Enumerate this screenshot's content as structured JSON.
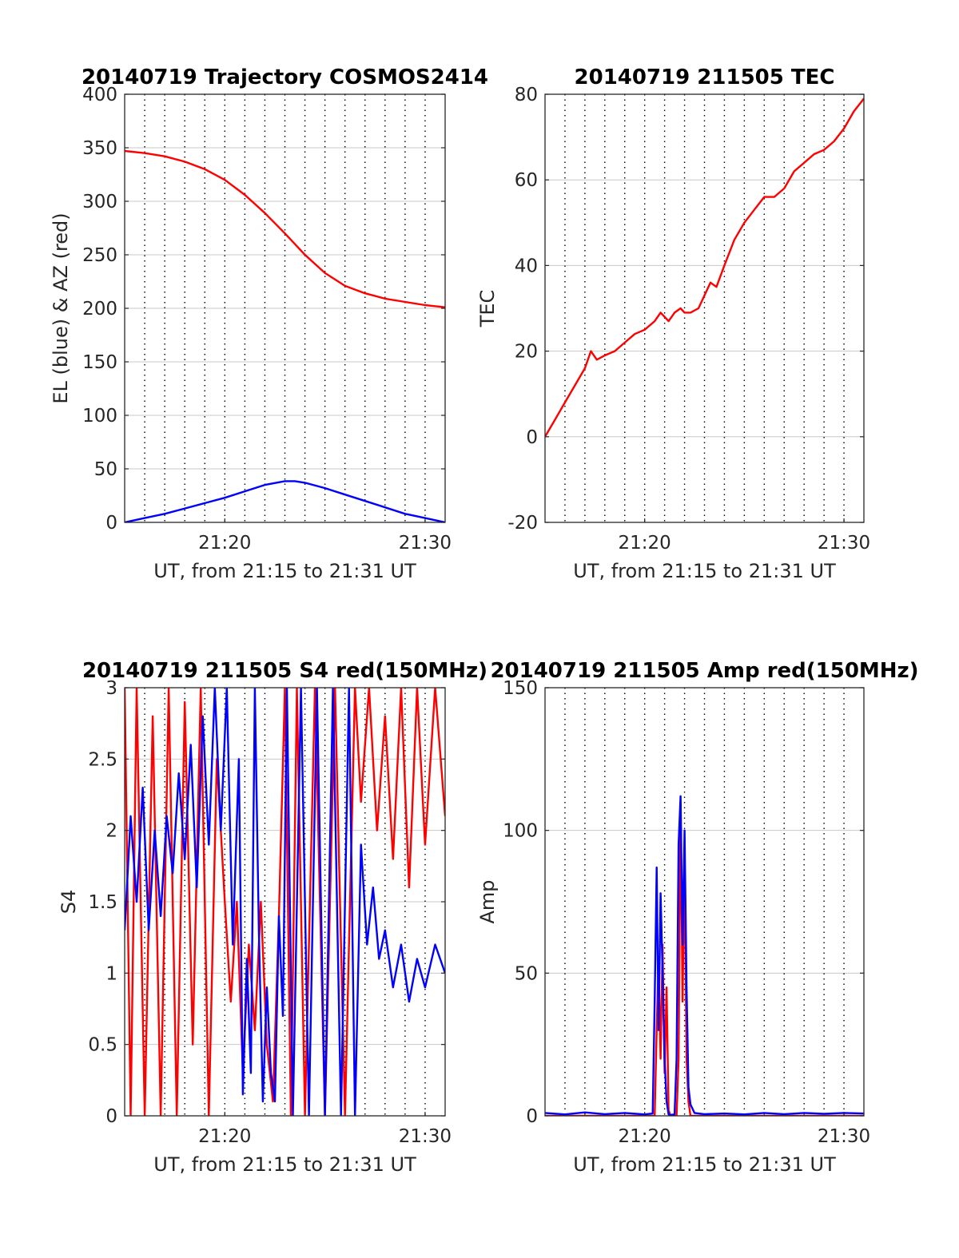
{
  "figure": {
    "colors": {
      "red": "#ff0000",
      "blue": "#0000ff",
      "grid": "#c8c8c8",
      "vgrid": "#000000",
      "axis": "#262626"
    }
  },
  "chart_data": [
    {
      "id": "trajectory",
      "type": "line",
      "title": "20140719 Trajectory COSMOS2414",
      "xlabel": "UT, from 21:15 to 21:31 UT",
      "ylabel": "EL (blue) & AZ (red)",
      "x_unit": "minutes after 21:00 UT",
      "xlim": [
        15,
        31
      ],
      "ylim": [
        0,
        400
      ],
      "yticks": [
        0,
        50,
        100,
        150,
        200,
        250,
        300,
        350,
        400
      ],
      "ytick_labels": [
        "0",
        "50",
        "100",
        "150",
        "200",
        "250",
        "300",
        "350",
        "400"
      ],
      "xticks": [
        20,
        30
      ],
      "xtick_labels": [
        "21:20",
        "21:30"
      ],
      "vgrid_dotted": [
        16,
        17,
        18,
        19,
        20,
        21,
        22,
        23,
        24,
        25,
        26,
        27,
        28,
        29,
        30
      ],
      "series": [
        {
          "color": "#ff0000",
          "x": [
            15,
            16,
            17,
            18,
            19,
            20,
            21,
            22,
            23,
            23.5,
            24,
            25,
            26,
            27,
            28,
            29,
            30,
            31
          ],
          "y": [
            347,
            345,
            342,
            337,
            330,
            320,
            306,
            289,
            270,
            260,
            250,
            233,
            221,
            214,
            209,
            206,
            203,
            201
          ]
        },
        {
          "color": "#0000ff",
          "x": [
            15,
            16,
            17,
            18,
            19,
            20,
            21,
            22,
            23,
            23.5,
            24,
            25,
            26,
            27,
            28,
            29,
            30,
            31
          ],
          "y": [
            0,
            4,
            8,
            13,
            18,
            23,
            29,
            35,
            38.5,
            38.5,
            37,
            32,
            26,
            20,
            14,
            8,
            4,
            0
          ]
        }
      ]
    },
    {
      "id": "tec",
      "type": "line",
      "title": "20140719 211505 TEC",
      "xlabel": "UT, from 21:15 to 21:31 UT",
      "ylabel": "TEC",
      "x_unit": "minutes after 21:00 UT",
      "xlim": [
        15,
        31
      ],
      "ylim": [
        -20,
        80
      ],
      "yticks": [
        -20,
        0,
        20,
        40,
        60,
        80
      ],
      "ytick_labels": [
        "-20",
        "0",
        "20",
        "40",
        "60",
        "80"
      ],
      "xticks": [
        20,
        30
      ],
      "xtick_labels": [
        "21:20",
        "21:30"
      ],
      "vgrid_dotted": [
        16,
        17,
        18,
        19,
        20,
        21,
        22,
        23,
        24,
        25,
        26,
        27,
        28,
        29,
        30
      ],
      "series": [
        {
          "color": "#ff0000",
          "x": [
            15,
            15.5,
            16,
            16.5,
            17,
            17.3,
            17.6,
            18,
            18.5,
            19,
            19.5,
            20,
            20.5,
            20.8,
            21,
            21.2,
            21.5,
            21.8,
            22,
            22.3,
            22.7,
            23,
            23.3,
            23.6,
            24,
            24.5,
            25,
            25.5,
            26,
            26.5,
            27,
            27.5,
            28,
            28.5,
            29,
            29.5,
            30,
            30.5,
            31
          ],
          "y": [
            0,
            4,
            8,
            12,
            16,
            20,
            18,
            19,
            20,
            22,
            24,
            25,
            27,
            29,
            28,
            27,
            29,
            30,
            29,
            29,
            30,
            33,
            36,
            35,
            40,
            46,
            50,
            53,
            56,
            56,
            58,
            62,
            64,
            66,
            67,
            69,
            72,
            76,
            79
          ]
        }
      ]
    },
    {
      "id": "s4",
      "type": "line",
      "title": "20140719 211505 S4 red(150MHz)",
      "xlabel": "UT, from 21:15 to 21:31 UT",
      "ylabel": "S4",
      "x_unit": "minutes after 21:00 UT",
      "xlim": [
        15,
        31
      ],
      "ylim": [
        0,
        3
      ],
      "yticks": [
        0,
        0.5,
        1,
        1.5,
        2,
        2.5,
        3
      ],
      "ytick_labels": [
        "0",
        "0.5",
        "1",
        "1.5",
        "2",
        "2.5",
        "3"
      ],
      "xticks": [
        20,
        30
      ],
      "xtick_labels": [
        "21:20",
        "21:30"
      ],
      "vgrid_dotted": [
        16,
        17,
        18,
        19,
        20,
        21,
        22,
        23,
        24,
        25,
        26,
        27,
        28,
        29,
        30
      ],
      "series": [
        {
          "color": "#ff0000",
          "x": [
            15,
            15.3,
            15.6,
            16,
            16.4,
            16.8,
            17.2,
            17.6,
            18,
            18.4,
            18.8,
            19.2,
            19.6,
            20,
            20.3,
            20.6,
            20.9,
            21.2,
            21.5,
            21.8,
            22.1,
            22.4,
            22.7,
            23,
            23.3,
            23.6,
            24,
            24.5,
            25,
            25.5,
            26,
            26.5,
            26.8,
            27.2,
            27.6,
            28,
            28.4,
            28.8,
            29.2,
            29.6,
            30,
            30.5,
            31
          ],
          "y": [
            3,
            0,
            3,
            0,
            2.8,
            0,
            3,
            0,
            2.9,
            0.5,
            3,
            0,
            2.5,
            1.5,
            0.8,
            1.5,
            0.3,
            1.2,
            0.6,
            1.5,
            0.5,
            0.1,
            1.4,
            3,
            0,
            3,
            0,
            3,
            0,
            3,
            0,
            3,
            2.2,
            3,
            2,
            2.8,
            1.8,
            3,
            1.6,
            3,
            1.9,
            3,
            2.1
          ]
        },
        {
          "color": "#0000ff",
          "x": [
            15,
            15.3,
            15.6,
            15.9,
            16.2,
            16.5,
            16.8,
            17.1,
            17.4,
            17.7,
            18,
            18.3,
            18.6,
            18.9,
            19.2,
            19.5,
            19.8,
            20.1,
            20.4,
            20.7,
            20.9,
            21.1,
            21.3,
            21.5,
            21.7,
            21.9,
            22.1,
            22.3,
            22.5,
            22.7,
            22.9,
            23.1,
            23.4,
            23.8,
            24.2,
            24.6,
            25,
            25.4,
            25.8,
            26.2,
            26.5,
            26.8,
            27.1,
            27.4,
            27.7,
            28,
            28.4,
            28.8,
            29.2,
            29.6,
            30,
            30.5,
            31
          ],
          "y": [
            1.3,
            2.1,
            1.5,
            2.3,
            1.3,
            2.0,
            1.4,
            2.1,
            1.7,
            2.4,
            1.8,
            2.6,
            1.6,
            2.8,
            1.9,
            3,
            2.0,
            3,
            1.2,
            2.5,
            0.15,
            1.1,
            0.3,
            3,
            1.3,
            0.1,
            0.9,
            0.3,
            0.1,
            1.4,
            0.7,
            3,
            0,
            3,
            0,
            3,
            0,
            3,
            0,
            3,
            0,
            1.9,
            1.2,
            1.6,
            1.1,
            1.3,
            0.9,
            1.2,
            0.8,
            1.1,
            0.9,
            1.2,
            1.0
          ]
        }
      ]
    },
    {
      "id": "amp",
      "type": "line",
      "title": "20140719 211505 Amp red(150MHz)",
      "xlabel": "UT, from 21:15 to 21:31 UT",
      "ylabel": "Amp",
      "x_unit": "minutes after 21:00 UT",
      "xlim": [
        15,
        31
      ],
      "ylim": [
        0,
        150
      ],
      "yticks": [
        0,
        50,
        100,
        150
      ],
      "ytick_labels": [
        "0",
        "50",
        "100",
        "150"
      ],
      "xticks": [
        20,
        30
      ],
      "xtick_labels": [
        "21:20",
        "21:30"
      ],
      "vgrid_dotted": [
        16,
        17,
        18,
        19,
        20,
        21,
        22,
        23,
        24,
        25,
        26,
        27,
        28,
        29,
        30
      ],
      "series": [
        {
          "color": "#ff0000",
          "x": [
            15,
            20.5,
            20.6,
            20.7,
            20.8,
            20.9,
            21.0,
            21.1,
            21.2,
            21.3,
            21.6,
            21.7,
            21.8,
            21.9,
            22.0,
            22.1,
            22.2,
            22.3,
            22.5,
            31
          ],
          "y": [
            0,
            0,
            30,
            55,
            20,
            60,
            15,
            45,
            2,
            0,
            0,
            20,
            110,
            40,
            90,
            20,
            5,
            0,
            0,
            0
          ]
        },
        {
          "color": "#0000ff",
          "x": [
            15,
            16,
            17,
            18,
            19,
            20,
            20.4,
            20.5,
            20.6,
            20.7,
            20.8,
            20.9,
            21.0,
            21.1,
            21.2,
            21.3,
            21.5,
            21.6,
            21.7,
            21.8,
            21.9,
            22.0,
            22.1,
            22.2,
            22.3,
            22.5,
            23,
            24,
            25,
            26,
            27,
            28,
            29,
            30,
            31
          ],
          "y": [
            1,
            0.5,
            1.2,
            0.6,
            1,
            0.5,
            0.8,
            40,
            87,
            30,
            78,
            50,
            20,
            5,
            0.5,
            0.3,
            0.5,
            20,
            95,
            112,
            60,
            100,
            45,
            10,
            4,
            1,
            0.6,
            0.8,
            0.5,
            1,
            0.6,
            1,
            0.7,
            1,
            0.8
          ]
        }
      ]
    }
  ]
}
